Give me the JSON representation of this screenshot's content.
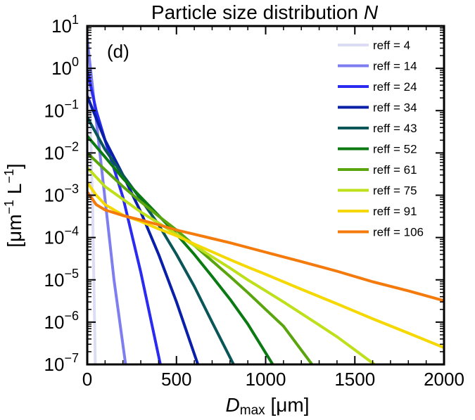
{
  "chart_data": {
    "type": "line",
    "title": "Particle size distribution",
    "title_symbol": "N",
    "panel_label": "(d)",
    "xlabel_symbol": "D",
    "xlabel_subscript": "max",
    "xlabel_unit": "[μm]",
    "ylabel": "[μm",
    "ylabel_exp1": "−1",
    "ylabel_mid": " L",
    "ylabel_exp2": "−1",
    "ylabel_end": "]",
    "xlim": [
      0,
      2000
    ],
    "ylim": [
      1e-07,
      10
    ],
    "yscale": "log",
    "x_ticks": [
      "0",
      "500",
      "1000",
      "1500",
      "2000"
    ],
    "y_ticks": [
      {
        "base": "10",
        "exp": "−7"
      },
      {
        "base": "10",
        "exp": "−6"
      },
      {
        "base": "10",
        "exp": "−5"
      },
      {
        "base": "10",
        "exp": "−4"
      },
      {
        "base": "10",
        "exp": "−3"
      },
      {
        "base": "10",
        "exp": "−2"
      },
      {
        "base": "10",
        "exp": "−1"
      },
      {
        "base": "10",
        "exp": "0"
      },
      {
        "base": "10",
        "exp": "1"
      }
    ],
    "legend_position": "top-right",
    "grid": false,
    "series": [
      {
        "name": "reff = 4",
        "color": "#dcdcf5",
        "x": [
          0,
          10,
          20,
          30,
          45
        ],
        "y": [
          10,
          1.0,
          0.02,
          0.0005,
          1e-07
        ]
      },
      {
        "name": "reff = 14",
        "color": "#7e7ef0",
        "x": [
          0,
          25,
          50,
          100,
          150,
          215
        ],
        "y": [
          5,
          0.55,
          0.06,
          0.0008,
          1e-05,
          1e-07
        ]
      },
      {
        "name": "reff = 24",
        "color": "#2a2af0",
        "x": [
          0,
          50,
          100,
          200,
          300,
          410
        ],
        "y": [
          0.9,
          0.1,
          0.02,
          0.0009,
          1.5e-05,
          1e-07
        ]
      },
      {
        "name": "reff = 34",
        "color": "#0a1fa8",
        "x": [
          0,
          100,
          200,
          300,
          400,
          500,
          620
        ],
        "y": [
          0.22,
          0.02,
          0.003,
          0.0004,
          4e-05,
          3e-06,
          1e-07
        ]
      },
      {
        "name": "reff = 43",
        "color": "#0a5558",
        "x": [
          0,
          100,
          200,
          300,
          400,
          500,
          600,
          700,
          820
        ],
        "y": [
          0.07,
          0.012,
          0.003,
          0.0008,
          0.0002,
          4e-05,
          7e-06,
          1e-06,
          1e-07
        ]
      },
      {
        "name": "reff = 52",
        "color": "#0b7a12",
        "x": [
          0,
          100,
          200,
          300,
          400,
          500,
          600,
          700,
          800,
          900,
          1040
        ],
        "y": [
          0.025,
          0.008,
          0.0025,
          0.0009,
          0.00033,
          0.00012,
          4e-05,
          1.2e-05,
          3.5e-06,
          9e-07,
          1e-07
        ]
      },
      {
        "name": "reff = 61",
        "color": "#5aa50d",
        "x": [
          0,
          100,
          200,
          300,
          400,
          500,
          600,
          700,
          800,
          900,
          1000,
          1100,
          1260
        ],
        "y": [
          0.01,
          0.004,
          0.0016,
          0.0007,
          0.00032,
          0.00015,
          6.5e-05,
          2.8e-05,
          1.2e-05,
          5e-06,
          2e-06,
          8e-07,
          1e-07
        ]
      },
      {
        "name": "reff = 75",
        "color": "#bde01a",
        "x": [
          0,
          100,
          200,
          300,
          400,
          500,
          600,
          700,
          800,
          900,
          1000,
          1100,
          1200,
          1300,
          1400,
          1500,
          1610
        ],
        "y": [
          0.0045,
          0.0016,
          0.0008,
          0.0004,
          0.00022,
          0.00012,
          6.5e-05,
          3.5e-05,
          1.9e-05,
          1e-05,
          5.5e-06,
          3e-06,
          1.6e-06,
          8.5e-07,
          4.5e-07,
          2.2e-07,
          1e-07
        ]
      },
      {
        "name": "reff = 91",
        "color": "#f5d800",
        "x": [
          0,
          50,
          100,
          200,
          300,
          400,
          500,
          600,
          700,
          800,
          900,
          1000,
          1200,
          1400,
          1600,
          1800,
          2000
        ],
        "y": [
          0.002,
          0.001,
          0.0006,
          0.00034,
          0.00024,
          0.00016,
          0.00011,
          7e-05,
          4.6e-05,
          3e-05,
          2e-05,
          1.35e-05,
          6e-06,
          2.7e-06,
          1.2e-06,
          5.5e-07,
          2.5e-07
        ]
      },
      {
        "name": "reff = 106",
        "color": "#f47a0c",
        "x": [
          0,
          50,
          100,
          200,
          300,
          400,
          500,
          600,
          700,
          800,
          1000,
          1200,
          1400,
          1600,
          1800,
          2000
        ],
        "y": [
          0.0012,
          0.0006,
          0.00045,
          0.00033,
          0.00026,
          0.0002,
          0.00015,
          0.00012,
          9.5e-05,
          7.5e-05,
          4.5e-05,
          2.7e-05,
          1.6e-05,
          9e-06,
          5.5e-06,
          3.2e-06
        ]
      }
    ]
  }
}
